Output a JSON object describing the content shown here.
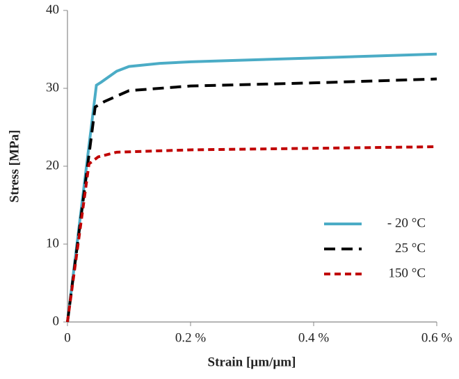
{
  "chart_data": {
    "type": "line",
    "x_label": "Strain [µm/µm]",
    "y_label": "Stress [MPa]",
    "xlim": [
      0,
      0.6
    ],
    "xticks": [
      0,
      {
        "value": 0.2,
        "label": "0.2 %"
      },
      {
        "value": 0.4,
        "label": "0.4 %"
      },
      {
        "value": 0.6,
        "label": "0.6 %"
      }
    ],
    "ylim": [
      0,
      40
    ],
    "yticks": [
      0,
      10,
      20,
      30,
      40
    ],
    "grid": false,
    "legend": "right",
    "series": [
      {
        "name": "- 20 °C",
        "color": "#4bacc6",
        "line_style": "solid",
        "x": [
          0,
          0.047,
          0.055,
          0.08,
          0.1,
          0.15,
          0.2,
          0.4,
          0.6
        ],
        "values": [
          0,
          30.4,
          30.8,
          32.2,
          32.8,
          33.2,
          33.4,
          33.9,
          34.4
        ]
      },
      {
        "name": "25 °C",
        "color": "#000000",
        "line_style": "dash",
        "x": [
          0,
          0.045,
          0.06,
          0.1,
          0.2,
          0.4,
          0.6
        ],
        "values": [
          0,
          27.6,
          28.3,
          29.7,
          30.3,
          30.7,
          31.2
        ]
      },
      {
        "name": "150 °C",
        "color": "#c00000",
        "line_style": "short-dash",
        "x": [
          0,
          0.035,
          0.05,
          0.08,
          0.2,
          0.4,
          0.6
        ],
        "values": [
          0,
          20.3,
          21.2,
          21.8,
          22.1,
          22.3,
          22.5
        ]
      }
    ]
  }
}
